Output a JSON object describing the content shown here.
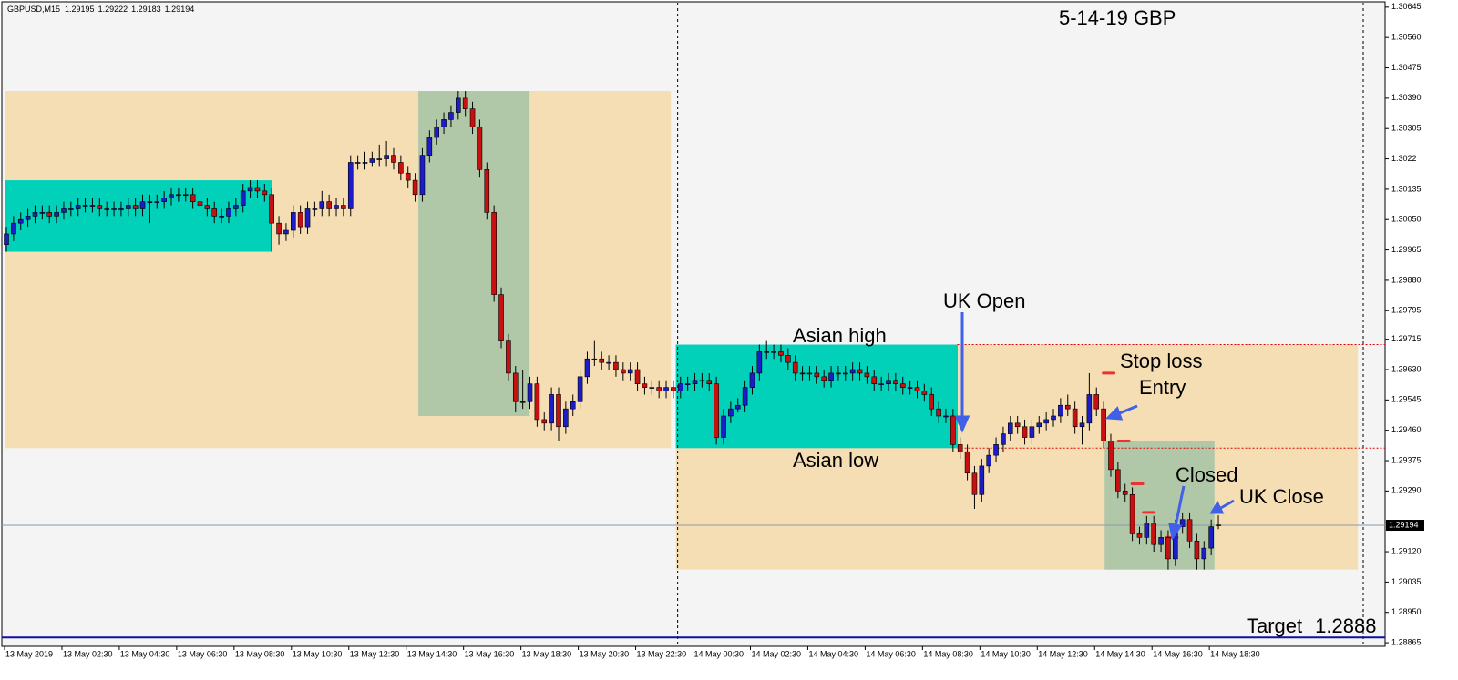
{
  "chart_data": {
    "type": "candlestick",
    "symbol": "GBPUSD,M15",
    "title": "5-14-19  GBP",
    "ylim": [
      1.28855,
      1.30665
    ],
    "yticks": [
      1.30645,
      {
        "value": 1.3056,
        "label": "1.30560"
      },
      1.30475,
      {
        "value": 1.3039,
        "label": "1.30390"
      },
      1.30305,
      1.3022,
      {
        "value": 1.30135,
        "label": "1.30135"
      },
      {
        "value": 1.3005,
        "label": "1.30050"
      },
      1.29965,
      {
        "value": 1.2988,
        "label": "1.29880"
      },
      1.29795,
      1.29715,
      {
        "value": 1.2963,
        "label": "1.29630"
      },
      1.29545,
      {
        "value": 1.2946,
        "label": "1.29460"
      },
      1.29375,
      {
        "value": 1.2929,
        "label": "1.29290"
      },
      {
        "value": 1.2912,
        "label": "1.29120"
      },
      1.29035,
      {
        "value": 1.2895,
        "label": "1.28950"
      },
      1.28865
    ],
    "xticks": [
      {
        "value": 0,
        "label": "13 May 2019"
      },
      {
        "value": 8,
        "label": "13 May 02:30"
      },
      {
        "value": 16,
        "label": "13 May 04:30"
      },
      {
        "value": 24,
        "label": "13 May 06:30"
      },
      {
        "value": 32,
        "label": "13 May 08:30"
      },
      {
        "value": 40,
        "label": "13 May 10:30"
      },
      {
        "value": 48,
        "label": "13 May 12:30"
      },
      {
        "value": 56,
        "label": "13 May 14:30"
      },
      {
        "value": 64,
        "label": "13 May 16:30"
      },
      {
        "value": 72,
        "label": "13 May 18:30"
      },
      {
        "value": 80,
        "label": "13 May 20:30"
      },
      {
        "value": 88,
        "label": "13 May 22:30"
      },
      {
        "value": 96,
        "label": "14 May 00:30"
      },
      {
        "value": 104,
        "label": "14 May 02:30"
      },
      {
        "value": 112,
        "label": "14 May 04:30"
      },
      {
        "value": 120,
        "label": "14 May 06:30"
      },
      {
        "value": 128,
        "label": "14 May 08:30"
      },
      {
        "value": 136,
        "label": "14 May 10:30"
      },
      {
        "value": 144,
        "label": "14 May 12:30"
      },
      {
        "value": 152,
        "label": "14 May 14:30"
      },
      {
        "value": 160,
        "label": "14 May 16:30"
      },
      {
        "value": 168,
        "label": "14 May 18:30"
      }
    ],
    "up_color": "#1c1cc8",
    "down_color": "#c81010",
    "zones": [
      {
        "bars": [
          0,
          92.4
        ],
        "prices": [
          1.3041,
          1.2941
        ],
        "color": "#f5deb3"
      },
      {
        "bars": [
          93.6,
          188.2
        ],
        "prices": [
          1.297,
          1.2907
        ],
        "color": "#f5deb3"
      },
      {
        "bars": [
          0,
          36.8
        ],
        "prices": [
          1.3016,
          1.2996
        ],
        "color": "#00d1b8"
      },
      {
        "bars": [
          57.7,
          72.7
        ],
        "prices": [
          1.3041,
          1.295
        ],
        "color": "#b0c8a8"
      },
      {
        "bars": [
          93.6,
          132.4
        ],
        "prices": [
          1.297,
          1.2941
        ],
        "color": "#00d1b8"
      },
      {
        "bars": [
          153.4,
          168.2
        ],
        "prices": [
          1.2943,
          1.2907
        ],
        "color": "#b0c8a8"
      }
    ],
    "separators": [
      93.6,
      189.2
    ],
    "levels": [
      {
        "price": 1.297,
        "from": 132.6,
        "color": "#e00000"
      },
      {
        "price": 1.2941,
        "from": 132.6,
        "color": "#e00000"
      }
    ],
    "markers": [
      {
        "bar": 153.7,
        "price": 1.2962
      },
      {
        "bar": 155.8,
        "price": 1.2943
      },
      {
        "bar": 157.7,
        "price": 1.2931
      },
      {
        "bar": 159.3,
        "price": 1.2923
      },
      {
        "bar": 162.5,
        "price": 1.2916
      }
    ],
    "target": {
      "label": "Target",
      "value": 1.2888,
      "color": "#1010a0"
    },
    "annotations": [
      "Asian high",
      "Asian low",
      "UK Open",
      "Stop loss",
      "Entry",
      "Closed",
      "UK Close"
    ],
    "candles": [
      [
        1.2998,
        1.3003,
        1.2996,
        1.3001
      ],
      [
        1.3001,
        1.3006,
        1.2999,
        1.3004
      ],
      [
        1.3004,
        1.3007,
        1.3002,
        1.3005
      ],
      [
        1.3005,
        1.3008,
        1.3003,
        1.3006
      ],
      [
        1.3006,
        1.3009,
        1.3004,
        1.3007
      ],
      [
        1.3007,
        1.3009,
        1.3005,
        1.3007
      ],
      [
        1.3007,
        1.3009,
        1.3004,
        1.3006
      ],
      [
        1.3006,
        1.3009,
        1.3004,
        1.3007
      ],
      [
        1.3007,
        1.301,
        1.3005,
        1.3008
      ],
      [
        1.3008,
        1.301,
        1.3006,
        1.3008
      ],
      [
        1.3008,
        1.3011,
        1.3006,
        1.3009
      ],
      [
        1.3009,
        1.3011,
        1.3007,
        1.3009
      ],
      [
        1.3009,
        1.3011,
        1.3007,
        1.3009
      ],
      [
        1.3009,
        1.3011,
        1.3006,
        1.3008
      ],
      [
        1.3008,
        1.301,
        1.3006,
        1.3008
      ],
      [
        1.3008,
        1.301,
        1.3006,
        1.3008
      ],
      [
        1.3008,
        1.301,
        1.3006,
        1.3008
      ],
      [
        1.3008,
        1.3011,
        1.3006,
        1.3009
      ],
      [
        1.3009,
        1.3011,
        1.3006,
        1.3008
      ],
      [
        1.3008,
        1.3012,
        1.3006,
        1.301
      ],
      [
        1.301,
        1.3012,
        1.3004,
        1.301
      ],
      [
        1.301,
        1.3012,
        1.3008,
        1.301
      ],
      [
        1.301,
        1.3013,
        1.3008,
        1.3011
      ],
      [
        1.3011,
        1.3014,
        1.3009,
        1.3012
      ],
      [
        1.3012,
        1.3014,
        1.301,
        1.3012
      ],
      [
        1.3012,
        1.3014,
        1.301,
        1.3012
      ],
      [
        1.3012,
        1.3014,
        1.3008,
        1.301
      ],
      [
        1.301,
        1.3012,
        1.3007,
        1.3009
      ],
      [
        1.3009,
        1.3011,
        1.3006,
        1.3008
      ],
      [
        1.3008,
        1.301,
        1.3004,
        1.3006
      ],
      [
        1.3006,
        1.3008,
        1.3004,
        1.3006
      ],
      [
        1.3006,
        1.301,
        1.3004,
        1.3008
      ],
      [
        1.3008,
        1.3011,
        1.3006,
        1.3009
      ],
      [
        1.3009,
        1.3015,
        1.3007,
        1.3013
      ],
      [
        1.3013,
        1.3016,
        1.3011,
        1.3014
      ],
      [
        1.3014,
        1.3016,
        1.3011,
        1.3013
      ],
      [
        1.3013,
        1.3015,
        1.301,
        1.3012
      ],
      [
        1.3012,
        1.3014,
        1.2996,
        1.3004
      ],
      [
        1.3004,
        1.3006,
        1.2998,
        1.3001
      ],
      [
        1.3001,
        1.3004,
        1.2999,
        1.3002
      ],
      [
        1.3002,
        1.3009,
        1.3,
        1.3007
      ],
      [
        1.3007,
        1.3009,
        1.3001,
        1.3003
      ],
      [
        1.3003,
        1.301,
        1.3001,
        1.3008
      ],
      [
        1.3008,
        1.301,
        1.3006,
        1.3008
      ],
      [
        1.3008,
        1.3013,
        1.3006,
        1.301
      ],
      [
        1.301,
        1.3012,
        1.3006,
        1.3008
      ],
      [
        1.3008,
        1.3011,
        1.3006,
        1.3009
      ],
      [
        1.3009,
        1.3011,
        1.3006,
        1.3008
      ],
      [
        1.3008,
        1.3023,
        1.3006,
        1.3021
      ],
      [
        1.3021,
        1.3023,
        1.3019,
        1.3021
      ],
      [
        1.3021,
        1.3024,
        1.3019,
        1.3021
      ],
      [
        1.3021,
        1.3024,
        1.302,
        1.3022
      ],
      [
        1.3022,
        1.3026,
        1.302,
        1.3022
      ],
      [
        1.3022,
        1.3027,
        1.302,
        1.3023
      ],
      [
        1.3023,
        1.3025,
        1.3019,
        1.3021
      ],
      [
        1.3021,
        1.3023,
        1.3016,
        1.3018
      ],
      [
        1.3018,
        1.302,
        1.3014,
        1.3016
      ],
      [
        1.3016,
        1.3018,
        1.301,
        1.3012
      ],
      [
        1.3012,
        1.3025,
        1.301,
        1.3023
      ],
      [
        1.3023,
        1.303,
        1.3021,
        1.3028
      ],
      [
        1.3028,
        1.3033,
        1.3026,
        1.3031
      ],
      [
        1.3031,
        1.3035,
        1.3029,
        1.3033
      ],
      [
        1.3033,
        1.3037,
        1.3031,
        1.3035
      ],
      [
        1.3035,
        1.3041,
        1.3033,
        1.3039
      ],
      [
        1.3039,
        1.3041,
        1.3034,
        1.3036
      ],
      [
        1.3036,
        1.3038,
        1.3029,
        1.3031
      ],
      [
        1.3031,
        1.3033,
        1.3017,
        1.3019
      ],
      [
        1.3019,
        1.3021,
        1.3005,
        1.3007
      ],
      [
        1.3007,
        1.3009,
        1.2982,
        1.2984
      ],
      [
        1.2984,
        1.2986,
        1.2969,
        1.2971
      ],
      [
        1.2971,
        1.2973,
        1.296,
        1.2962
      ],
      [
        1.2962,
        1.2964,
        1.2951,
        1.2954
      ],
      [
        1.2954,
        1.2963,
        1.2952,
        1.2954
      ],
      [
        1.2954,
        1.2961,
        1.2952,
        1.2959
      ],
      [
        1.2959,
        1.2961,
        1.2947,
        1.2949
      ],
      [
        1.2949,
        1.2951,
        1.2946,
        1.2948
      ],
      [
        1.2948,
        1.2958,
        1.2946,
        1.2956
      ],
      [
        1.2956,
        1.2958,
        1.2943,
        1.2947
      ],
      [
        1.2947,
        1.2954,
        1.2945,
        1.2952
      ],
      [
        1.2952,
        1.2956,
        1.295,
        1.2954
      ],
      [
        1.2954,
        1.2963,
        1.2952,
        1.2961
      ],
      [
        1.2961,
        1.2968,
        1.2959,
        1.2966
      ],
      [
        1.2966,
        1.2971,
        1.2964,
        1.2966
      ],
      [
        1.2966,
        1.2968,
        1.2963,
        1.2965
      ],
      [
        1.2965,
        1.2967,
        1.2963,
        1.2965
      ],
      [
        1.2965,
        1.2967,
        1.2961,
        1.2963
      ],
      [
        1.2963,
        1.2965,
        1.296,
        1.2962
      ],
      [
        1.2962,
        1.2965,
        1.296,
        1.2963
      ],
      [
        1.2963,
        1.2965,
        1.2957,
        1.2959
      ],
      [
        1.2959,
        1.2961,
        1.2956,
        1.2958
      ],
      [
        1.2958,
        1.296,
        1.2956,
        1.2958
      ],
      [
        1.2958,
        1.296,
        1.2955,
        1.2957
      ],
      [
        1.2957,
        1.296,
        1.2955,
        1.2958
      ],
      [
        1.2958,
        1.296,
        1.2955,
        1.2957
      ],
      [
        1.2957,
        1.2961,
        1.2955,
        1.2959
      ],
      [
        1.2959,
        1.2961,
        1.2957,
        1.2959
      ],
      [
        1.2959,
        1.2962,
        1.2957,
        1.296
      ],
      [
        1.296,
        1.2962,
        1.2958,
        1.296
      ],
      [
        1.296,
        1.2962,
        1.2957,
        1.2959
      ],
      [
        1.2959,
        1.2961,
        1.2942,
        1.2944
      ],
      [
        1.2944,
        1.2952,
        1.2942,
        1.295
      ],
      [
        1.295,
        1.2954,
        1.2948,
        1.2952
      ],
      [
        1.2952,
        1.2955,
        1.2951,
        1.2953
      ],
      [
        1.2953,
        1.296,
        1.2951,
        1.2958
      ],
      [
        1.2958,
        1.2964,
        1.2956,
        1.2962
      ],
      [
        1.2962,
        1.297,
        1.296,
        1.2968
      ],
      [
        1.2968,
        1.2971,
        1.2966,
        1.2968
      ],
      [
        1.2968,
        1.297,
        1.2966,
        1.2968
      ],
      [
        1.2968,
        1.297,
        1.2965,
        1.2967
      ],
      [
        1.2967,
        1.2969,
        1.2963,
        1.2965
      ],
      [
        1.2965,
        1.2967,
        1.296,
        1.2962
      ],
      [
        1.2962,
        1.2964,
        1.296,
        1.2962
      ],
      [
        1.2962,
        1.2964,
        1.296,
        1.2962
      ],
      [
        1.2962,
        1.2964,
        1.2959,
        1.2961
      ],
      [
        1.2961,
        1.2963,
        1.2958,
        1.296
      ],
      [
        1.296,
        1.2964,
        1.2958,
        1.2962
      ],
      [
        1.2962,
        1.2964,
        1.296,
        1.2962
      ],
      [
        1.2962,
        1.2964,
        1.296,
        1.2962
      ],
      [
        1.2962,
        1.2965,
        1.296,
        1.2963
      ],
      [
        1.2963,
        1.2965,
        1.296,
        1.2962
      ],
      [
        1.2962,
        1.2964,
        1.2959,
        1.2961
      ],
      [
        1.2961,
        1.2963,
        1.2957,
        1.2959
      ],
      [
        1.2959,
        1.2961,
        1.2957,
        1.2959
      ],
      [
        1.2959,
        1.2962,
        1.2957,
        1.296
      ],
      [
        1.296,
        1.2962,
        1.2957,
        1.2959
      ],
      [
        1.2959,
        1.2961,
        1.2956,
        1.2958
      ],
      [
        1.2958,
        1.296,
        1.2956,
        1.2958
      ],
      [
        1.2958,
        1.296,
        1.2955,
        1.2957
      ],
      [
        1.2957,
        1.2959,
        1.2954,
        1.2956
      ],
      [
        1.2956,
        1.2958,
        1.295,
        1.2952
      ],
      [
        1.2952,
        1.2954,
        1.2948,
        1.295
      ],
      [
        1.295,
        1.2952,
        1.2948,
        1.295
      ],
      [
        1.295,
        1.2952,
        1.294,
        1.2942
      ],
      [
        1.2942,
        1.2944,
        1.2938,
        1.294
      ],
      [
        1.294,
        1.2942,
        1.2932,
        1.2934
      ],
      [
        1.2934,
        1.2936,
        1.2924,
        1.2928
      ],
      [
        1.2928,
        1.2938,
        1.2926,
        1.2936
      ],
      [
        1.2936,
        1.2941,
        1.2934,
        1.2939
      ],
      [
        1.2939,
        1.2944,
        1.2937,
        1.2942
      ],
      [
        1.2942,
        1.2947,
        1.294,
        1.2945
      ],
      [
        1.2945,
        1.295,
        1.2943,
        1.2948
      ],
      [
        1.2948,
        1.295,
        1.2945,
        1.2947
      ],
      [
        1.2947,
        1.2949,
        1.2942,
        1.2944
      ],
      [
        1.2944,
        1.2949,
        1.2942,
        1.2947
      ],
      [
        1.2947,
        1.295,
        1.2945,
        1.2948
      ],
      [
        1.2948,
        1.2951,
        1.2946,
        1.2949
      ],
      [
        1.2949,
        1.2952,
        1.2947,
        1.295
      ],
      [
        1.295,
        1.2955,
        1.2948,
        1.2953
      ],
      [
        1.2953,
        1.2956,
        1.295,
        1.2952
      ],
      [
        1.2952,
        1.2954,
        1.2945,
        1.2947
      ],
      [
        1.2947,
        1.295,
        1.2942,
        1.2948
      ],
      [
        1.2948,
        1.2962,
        1.2946,
        1.2956
      ],
      [
        1.2956,
        1.2958,
        1.295,
        1.2952
      ],
      [
        1.2952,
        1.2954,
        1.2941,
        1.2943
      ],
      [
        1.2943,
        1.2945,
        1.2933,
        1.2935
      ],
      [
        1.2935,
        1.2937,
        1.2927,
        1.2929
      ],
      [
        1.2929,
        1.2931,
        1.2926,
        1.2928
      ],
      [
        1.2928,
        1.293,
        1.2915,
        1.2917
      ],
      [
        1.2917,
        1.2919,
        1.2914,
        1.2916
      ],
      [
        1.2916,
        1.2922,
        1.2914,
        1.292
      ],
      [
        1.292,
        1.2922,
        1.2912,
        1.2914
      ],
      [
        1.2914,
        1.2918,
        1.2912,
        1.2916
      ],
      [
        1.2916,
        1.2918,
        1.2907,
        1.291
      ],
      [
        1.291,
        1.2921,
        1.2908,
        1.2919
      ],
      [
        1.2919,
        1.2923,
        1.2917,
        1.2921
      ],
      [
        1.2921,
        1.2923,
        1.2913,
        1.2915
      ],
      [
        1.2915,
        1.2917,
        1.2907,
        1.291
      ],
      [
        1.291,
        1.2915,
        1.2907,
        1.2913
      ],
      [
        1.2913,
        1.2921,
        1.2911,
        1.2919
      ],
      [
        1.29195,
        1.29222,
        1.29183,
        1.29194
      ]
    ]
  }
}
